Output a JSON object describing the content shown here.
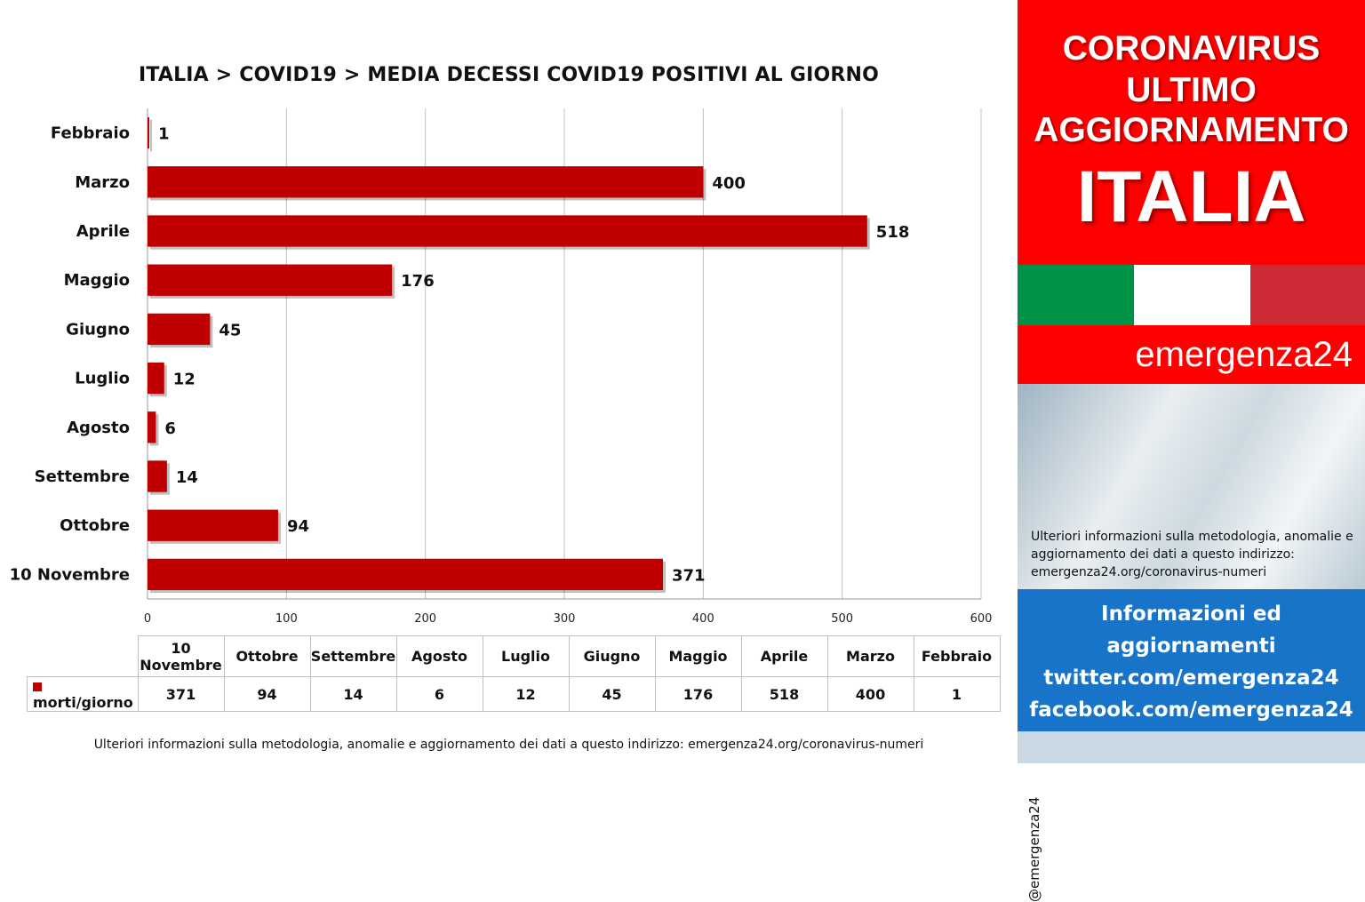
{
  "chart_data": {
    "type": "bar",
    "orientation": "horizontal",
    "title": "ITALIA >  COVID19 > MEDIA DECESSI COVID19 POSITIVI AL GIORNO",
    "categories": [
      "Febbraio",
      "Marzo",
      "Aprile",
      "Maggio",
      "Giugno",
      "Luglio",
      "Agosto",
      "Settembre",
      "Ottobre",
      "10 Novembre"
    ],
    "series": [
      {
        "name": "morti/giorno",
        "values": [
          1,
          400,
          518,
          176,
          45,
          12,
          6,
          14,
          94,
          371
        ]
      }
    ],
    "xlim": [
      0,
      600
    ],
    "xticks": [
      "0",
      "100",
      "200",
      "300",
      "400",
      "500",
      "600"
    ],
    "grid": true,
    "bar_color": "#c00000",
    "legend_placement": "bottom-table"
  },
  "table": {
    "legend_label": "morti/giorno",
    "headers": [
      [
        "10",
        "Novembre"
      ],
      [
        "Ottobre"
      ],
      [
        "Settembre"
      ],
      [
        "Agosto"
      ],
      [
        "Luglio"
      ],
      [
        "Giugno"
      ],
      [
        "Maggio"
      ],
      [
        "Aprile"
      ],
      [
        "Marzo"
      ],
      [
        "Febbraio"
      ]
    ],
    "values": [
      "371",
      "94",
      "14",
      "6",
      "12",
      "45",
      "176",
      "518",
      "400",
      "1"
    ]
  },
  "footer_note": "Ulteriori informazioni sulla metodologia, anomalie e aggiornamento dei dati a questo indirizzo: emergenza24.org/coronavirus-numeri",
  "side": {
    "line1": "CORONAVIRUS",
    "line2": "ULTIMO",
    "line3": "AGGIORNAMENTO",
    "country": "ITALIA",
    "brand": "emergenza24",
    "handle": "@emergenza24",
    "note": "Ulteriori informazioni sulla metodologia, anomalie e aggiornamento dei dati a questo indirizzo: emergenza24.org/coronavirus-numeri",
    "info1": "Informazioni ed",
    "info2": "aggiornamenti",
    "twitter": "twitter.com/emergenza24",
    "facebook": "facebook.com/emergenza24",
    "red_color": "#ff0000",
    "blue_color": "#1874c8",
    "flag_colors": [
      "#009246",
      "#ffffff",
      "#ce2b37"
    ]
  }
}
